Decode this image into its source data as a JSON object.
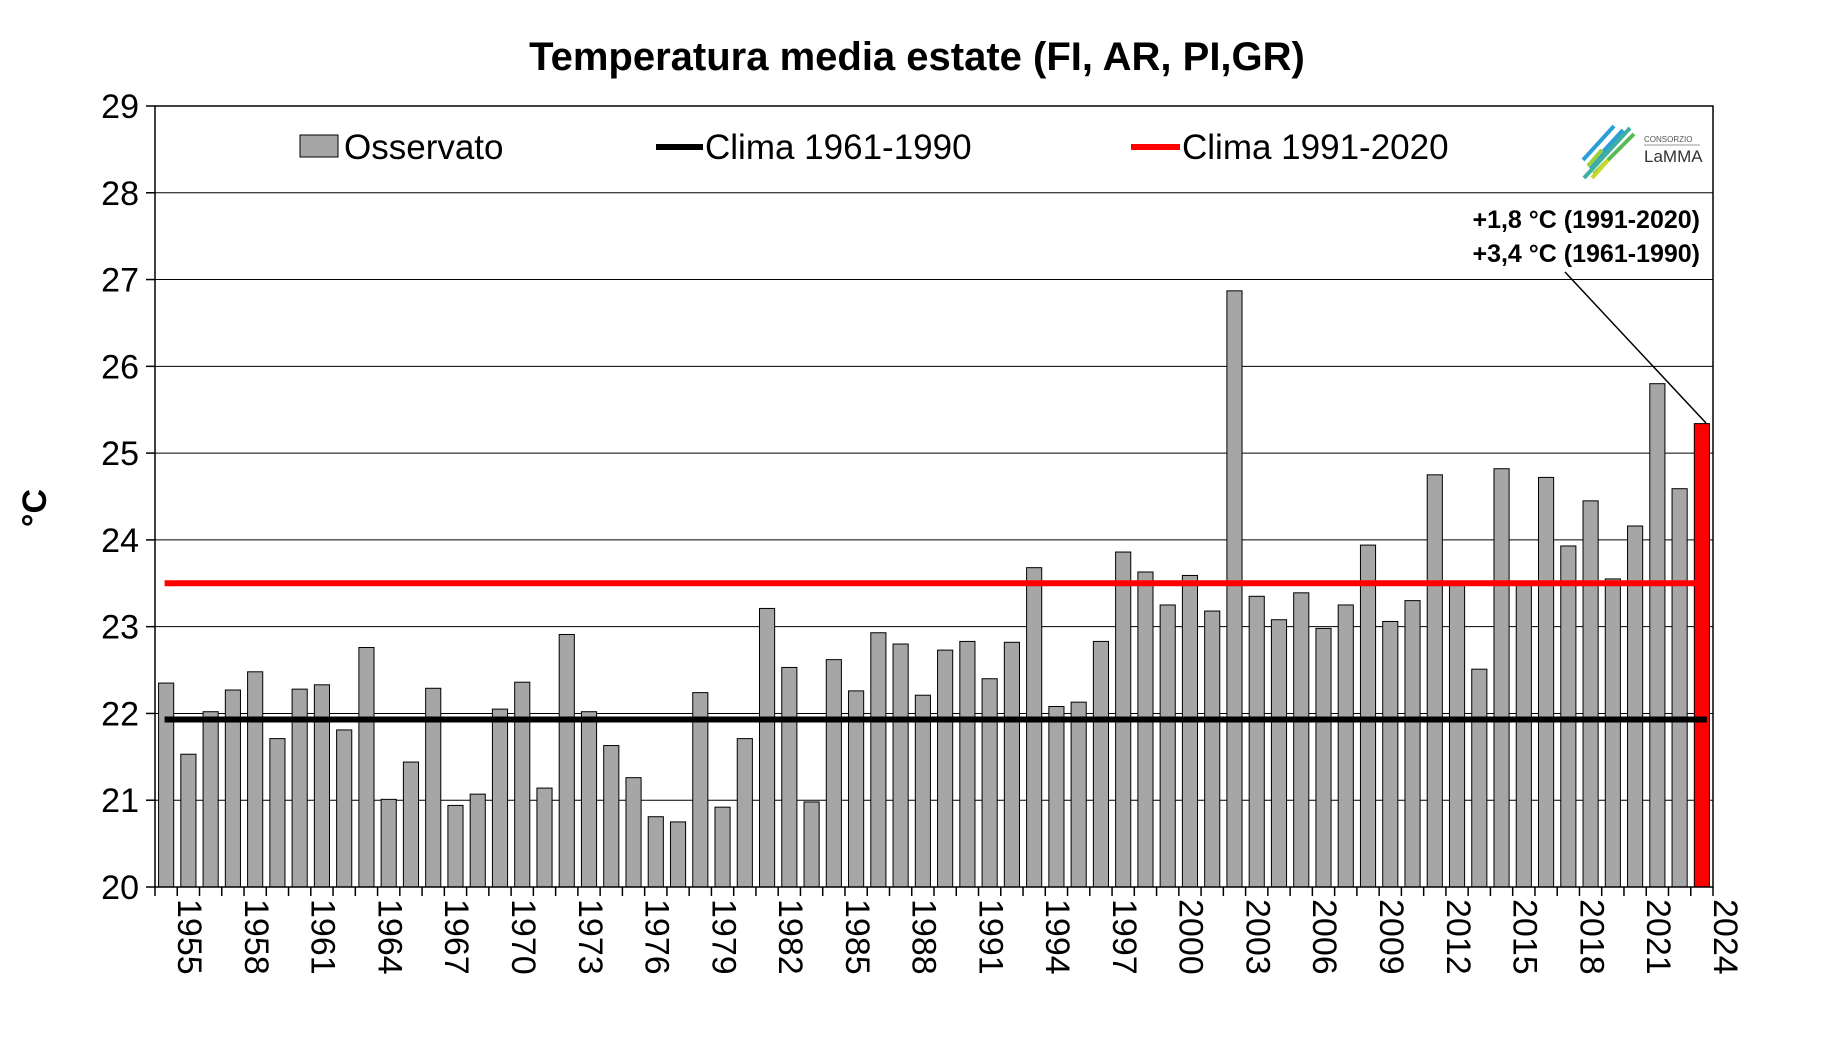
{
  "chart_data": {
    "type": "bar",
    "title": "Temperatura media estate (FI, AR, PI,GR)",
    "ylabel": "°C",
    "xlabel": "",
    "ylim": [
      20,
      29
    ],
    "yticks": [
      20,
      21,
      22,
      23,
      24,
      25,
      26,
      27,
      28,
      29
    ],
    "grid": true,
    "legend_position": "top",
    "x": [
      1955,
      1956,
      1957,
      1958,
      1959,
      1960,
      1961,
      1962,
      1963,
      1964,
      1965,
      1966,
      1967,
      1968,
      1969,
      1970,
      1971,
      1972,
      1973,
      1974,
      1975,
      1976,
      1977,
      1978,
      1979,
      1980,
      1981,
      1982,
      1983,
      1984,
      1985,
      1986,
      1987,
      1988,
      1989,
      1990,
      1991,
      1992,
      1993,
      1994,
      1995,
      1996,
      1997,
      1998,
      1999,
      2000,
      2001,
      2002,
      2003,
      2004,
      2005,
      2006,
      2007,
      2008,
      2009,
      2010,
      2011,
      2012,
      2013,
      2014,
      2015,
      2016,
      2017,
      2018,
      2019,
      2020,
      2021,
      2022,
      2023,
      2024
    ],
    "xtick_labels": [
      "1955",
      "1958",
      "1961",
      "1964",
      "1967",
      "1970",
      "1973",
      "1976",
      "1979",
      "1982",
      "1985",
      "1988",
      "1991",
      "1994",
      "1997",
      "2000",
      "2003",
      "2006",
      "2009",
      "2012",
      "2015",
      "2018",
      "2021",
      "2024"
    ],
    "series": [
      {
        "name": "Osservato",
        "color": "#a6a6a6",
        "highlight_last_color": "#ff0000",
        "values": [
          22.35,
          21.53,
          22.02,
          22.27,
          22.48,
          21.71,
          22.28,
          22.33,
          21.81,
          22.76,
          21.01,
          21.44,
          22.29,
          20.94,
          21.07,
          22.05,
          22.36,
          21.14,
          22.91,
          22.02,
          21.63,
          21.26,
          20.81,
          20.75,
          22.24,
          20.92,
          21.71,
          23.21,
          22.53,
          20.98,
          22.62,
          22.26,
          22.93,
          22.8,
          22.21,
          22.73,
          22.83,
          22.4,
          22.82,
          23.68,
          22.08,
          22.13,
          22.83,
          23.86,
          23.63,
          23.25,
          23.59,
          23.18,
          26.87,
          23.35,
          23.08,
          23.39,
          22.98,
          23.25,
          23.94,
          23.06,
          23.3,
          24.75,
          23.5,
          22.51,
          24.82,
          23.5,
          24.72,
          23.93,
          24.45,
          23.55,
          24.16,
          25.8,
          24.59,
          25.34
        ]
      },
      {
        "name": "Clima 1961-1990",
        "color": "#000000",
        "value": 21.93
      },
      {
        "name": "Clima 1991-2020",
        "color": "#ff0000",
        "value": 23.5
      }
    ],
    "annotations": [
      "+1,8 °C (1991-2020)",
      "+3,4 °C (1961-1990)"
    ]
  },
  "logo": {
    "top": "CONSORZIO",
    "name": "LaMMA"
  }
}
